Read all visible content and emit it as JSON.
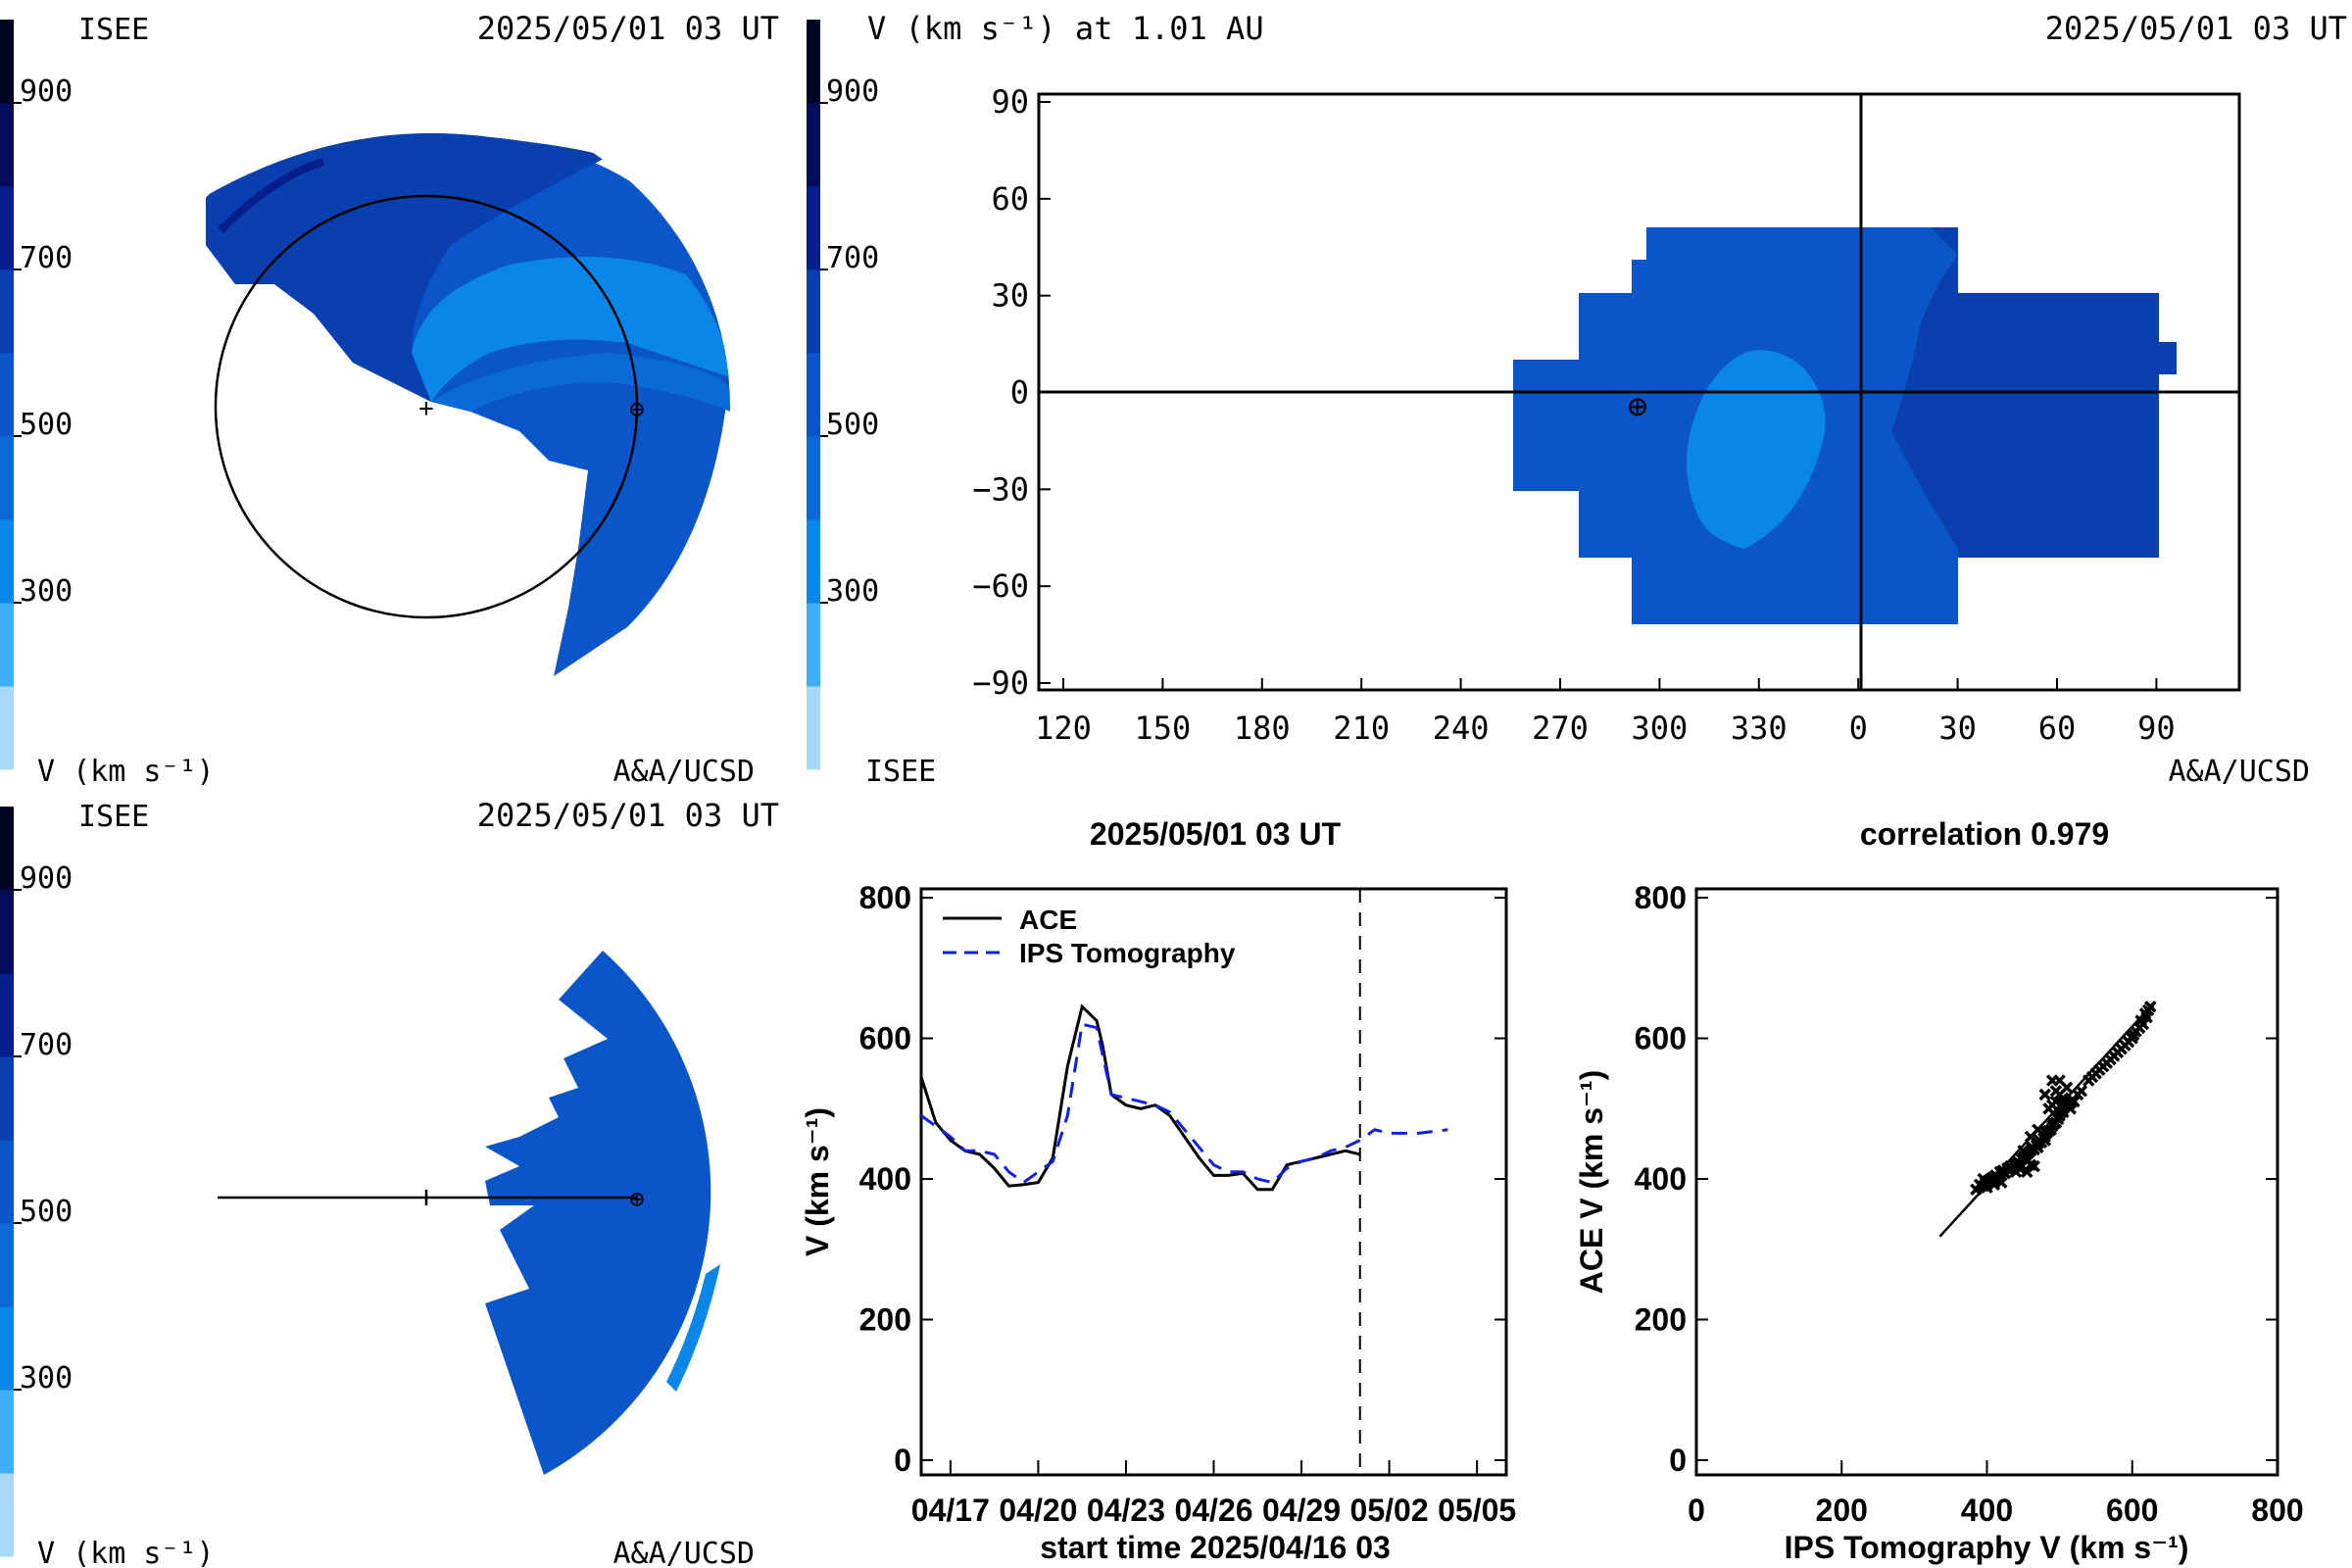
{
  "colorscale": {
    "ticks": [
      "900",
      "700",
      "500",
      "300"
    ],
    "tick_values": [
      900,
      700,
      500,
      300
    ],
    "range": [
      100,
      1000
    ],
    "bands": [
      "#a6d8f8",
      "#3fb0f7",
      "#0a85e8",
      "#0a6ad8",
      "#0a55c8",
      "#0a3fb0",
      "#061f8c",
      "#020c5a",
      "#000322"
    ],
    "unit_label": "V (km s⁻¹)"
  },
  "panel_ecliptic": {
    "org_label": "ISEE",
    "time_label": "2025/05/01 03 UT",
    "credit_label": "A&A/UCSD",
    "unit_label": "V (km s⁻¹)",
    "sun_symbol": "+",
    "earth_symbol": "⊕"
  },
  "panel_meridional": {
    "org_label": "ISEE",
    "time_label": "2025/05/01 03 UT",
    "credit_label": "A&A/UCSD",
    "unit_label": "V (km s⁻¹)"
  },
  "panel_map": {
    "title": "V (km s⁻¹) at 1.01 AU",
    "time_label": "2025/05/01 03 UT",
    "org_label": "ISEE",
    "credit_label": "A&A/UCSD",
    "x_tick_labels": [
      "120",
      "150",
      "180",
      "210",
      "240",
      "270",
      "300",
      "330",
      "0",
      "30",
      "60",
      "90"
    ],
    "y_tick_labels": [
      "90",
      "60",
      "30",
      "0",
      "−30",
      "−60",
      "−90"
    ],
    "y_tick_values": [
      90,
      60,
      30,
      0,
      -30,
      -60,
      -90
    ]
  },
  "chart_data": [
    {
      "type": "line",
      "title": "2025/05/01 03 UT",
      "xlabel": "start time 2025/04/16 03",
      "ylabel": "V (km s⁻¹)",
      "ylim": [
        0,
        800
      ],
      "y_ticks": [
        "800",
        "600",
        "400",
        "200",
        "0"
      ],
      "x_tick_labels": [
        "04/17",
        "04/20",
        "04/23",
        "04/26",
        "04/29",
        "05/02",
        "05/05"
      ],
      "x_unit": "days after 2025/04/16 03 UT",
      "xlim": [
        0,
        20
      ],
      "x_tick_values": [
        1,
        4,
        7,
        10,
        13,
        16,
        19
      ],
      "current_time_marker": 15.0,
      "series": [
        {
          "name": "ACE",
          "style": "solid",
          "color": "#000000",
          "x": [
            0.0,
            0.5,
            1.0,
            1.5,
            2.0,
            2.5,
            3.0,
            3.5,
            4.0,
            4.5,
            5.0,
            5.5,
            6.0,
            6.2,
            6.5,
            7.0,
            7.5,
            8.0,
            8.5,
            9.0,
            9.5,
            10.0,
            10.5,
            11.0,
            11.5,
            12.0,
            12.5,
            13.0,
            13.5,
            14.0,
            14.5,
            15.0
          ],
          "values": [
            545,
            480,
            455,
            440,
            435,
            415,
            390,
            392,
            395,
            430,
            560,
            645,
            625,
            590,
            520,
            505,
            500,
            505,
            490,
            460,
            430,
            405,
            405,
            408,
            385,
            385,
            420,
            425,
            430,
            435,
            440,
            435
          ]
        },
        {
          "name": "IPS Tomography",
          "style": "dashed",
          "color": "#1020e0",
          "x": [
            0.0,
            1.0,
            1.5,
            2.0,
            2.5,
            3.0,
            3.5,
            4.0,
            4.5,
            5.0,
            5.5,
            6.0,
            6.5,
            7.0,
            7.5,
            8.0,
            8.5,
            9.0,
            9.5,
            10.0,
            10.5,
            11.0,
            11.5,
            12.0,
            12.5,
            13.0,
            13.5,
            14.0,
            14.5,
            15.0,
            15.5,
            16.0,
            17.0,
            18.0
          ],
          "values": [
            490,
            460,
            440,
            440,
            435,
            410,
            395,
            410,
            425,
            490,
            620,
            615,
            520,
            515,
            510,
            505,
            495,
            470,
            445,
            420,
            410,
            410,
            400,
            395,
            415,
            425,
            430,
            440,
            445,
            455,
            470,
            465,
            465,
            470
          ]
        }
      ]
    },
    {
      "type": "scatter",
      "title": "correlation 0.979",
      "xlabel": "IPS Tomography V (km s⁻¹)",
      "ylabel": "ACE V (km s⁻¹)",
      "xlim": [
        0,
        800
      ],
      "ylim": [
        0,
        800
      ],
      "x_ticks": [
        "0",
        "200",
        "400",
        "600",
        "800"
      ],
      "y_ticks": [
        "800",
        "600",
        "400",
        "200",
        "0"
      ],
      "regression_line": {
        "x": [
          335,
          625
        ],
        "y": [
          318,
          645
        ]
      },
      "points": [
        [
          385,
          385
        ],
        [
          390,
          392
        ],
        [
          395,
          390
        ],
        [
          398,
          395
        ],
        [
          400,
          388
        ],
        [
          402,
          398
        ],
        [
          405,
          400
        ],
        [
          408,
          402
        ],
        [
          410,
          398
        ],
        [
          412,
          405
        ],
        [
          415,
          402
        ],
        [
          418,
          410
        ],
        [
          420,
          405
        ],
        [
          422,
          412
        ],
        [
          425,
          408
        ],
        [
          428,
          415
        ],
        [
          430,
          412
        ],
        [
          432,
          418
        ],
        [
          435,
          415
        ],
        [
          438,
          420
        ],
        [
          440,
          418
        ],
        [
          442,
          425
        ],
        [
          445,
          422
        ],
        [
          448,
          428
        ],
        [
          450,
          430
        ],
        [
          452,
          432
        ],
        [
          455,
          435
        ],
        [
          458,
          438
        ],
        [
          460,
          440
        ],
        [
          462,
          445
        ],
        [
          465,
          442
        ],
        [
          468,
          448
        ],
        [
          470,
          450
        ],
        [
          472,
          455
        ],
        [
          475,
          452
        ],
        [
          478,
          458
        ],
        [
          480,
          460
        ],
        [
          482,
          465
        ],
        [
          485,
          468
        ],
        [
          488,
          470
        ],
        [
          490,
          475
        ],
        [
          492,
          478
        ],
        [
          495,
          480
        ],
        [
          498,
          485
        ],
        [
          500,
          490
        ],
        [
          502,
          495
        ],
        [
          505,
          500
        ],
        [
          508,
          505
        ],
        [
          510,
          510
        ],
        [
          512,
          505
        ],
        [
          515,
          508
        ],
        [
          518,
          512
        ],
        [
          520,
          510
        ],
        [
          495,
          510
        ],
        [
          490,
          505
        ],
        [
          500,
          520
        ],
        [
          505,
          515
        ],
        [
          440,
          410
        ],
        [
          445,
          415
        ],
        [
          420,
          395
        ],
        [
          410,
          392
        ],
        [
          400,
          395
        ],
        [
          395,
          400
        ],
        [
          480,
          520
        ],
        [
          490,
          540
        ],
        [
          500,
          540
        ],
        [
          510,
          530
        ],
        [
          495,
          525
        ],
        [
          485,
          500
        ],
        [
          470,
          470
        ],
        [
          460,
          460
        ],
        [
          450,
          440
        ],
        [
          540,
          540
        ],
        [
          550,
          550
        ],
        [
          560,
          560
        ],
        [
          570,
          570
        ],
        [
          580,
          580
        ],
        [
          590,
          590
        ],
        [
          600,
          600
        ],
        [
          605,
          610
        ],
        [
          610,
          615
        ],
        [
          615,
          620
        ],
        [
          620,
          630
        ],
        [
          622,
          640
        ],
        [
          625,
          645
        ],
        [
          618,
          635
        ],
        [
          612,
          625
        ],
        [
          602,
          605
        ],
        [
          595,
          595
        ],
        [
          585,
          585
        ],
        [
          575,
          575
        ],
        [
          565,
          565
        ],
        [
          555,
          555
        ],
        [
          545,
          545
        ],
        [
          530,
          525
        ],
        [
          525,
          520
        ],
        [
          515,
          500
        ],
        [
          505,
          495
        ],
        [
          480,
          455
        ],
        [
          470,
          445
        ],
        [
          460,
          420
        ],
        [
          455,
          410
        ],
        [
          465,
          418
        ],
        [
          440,
          420
        ]
      ]
    }
  ]
}
